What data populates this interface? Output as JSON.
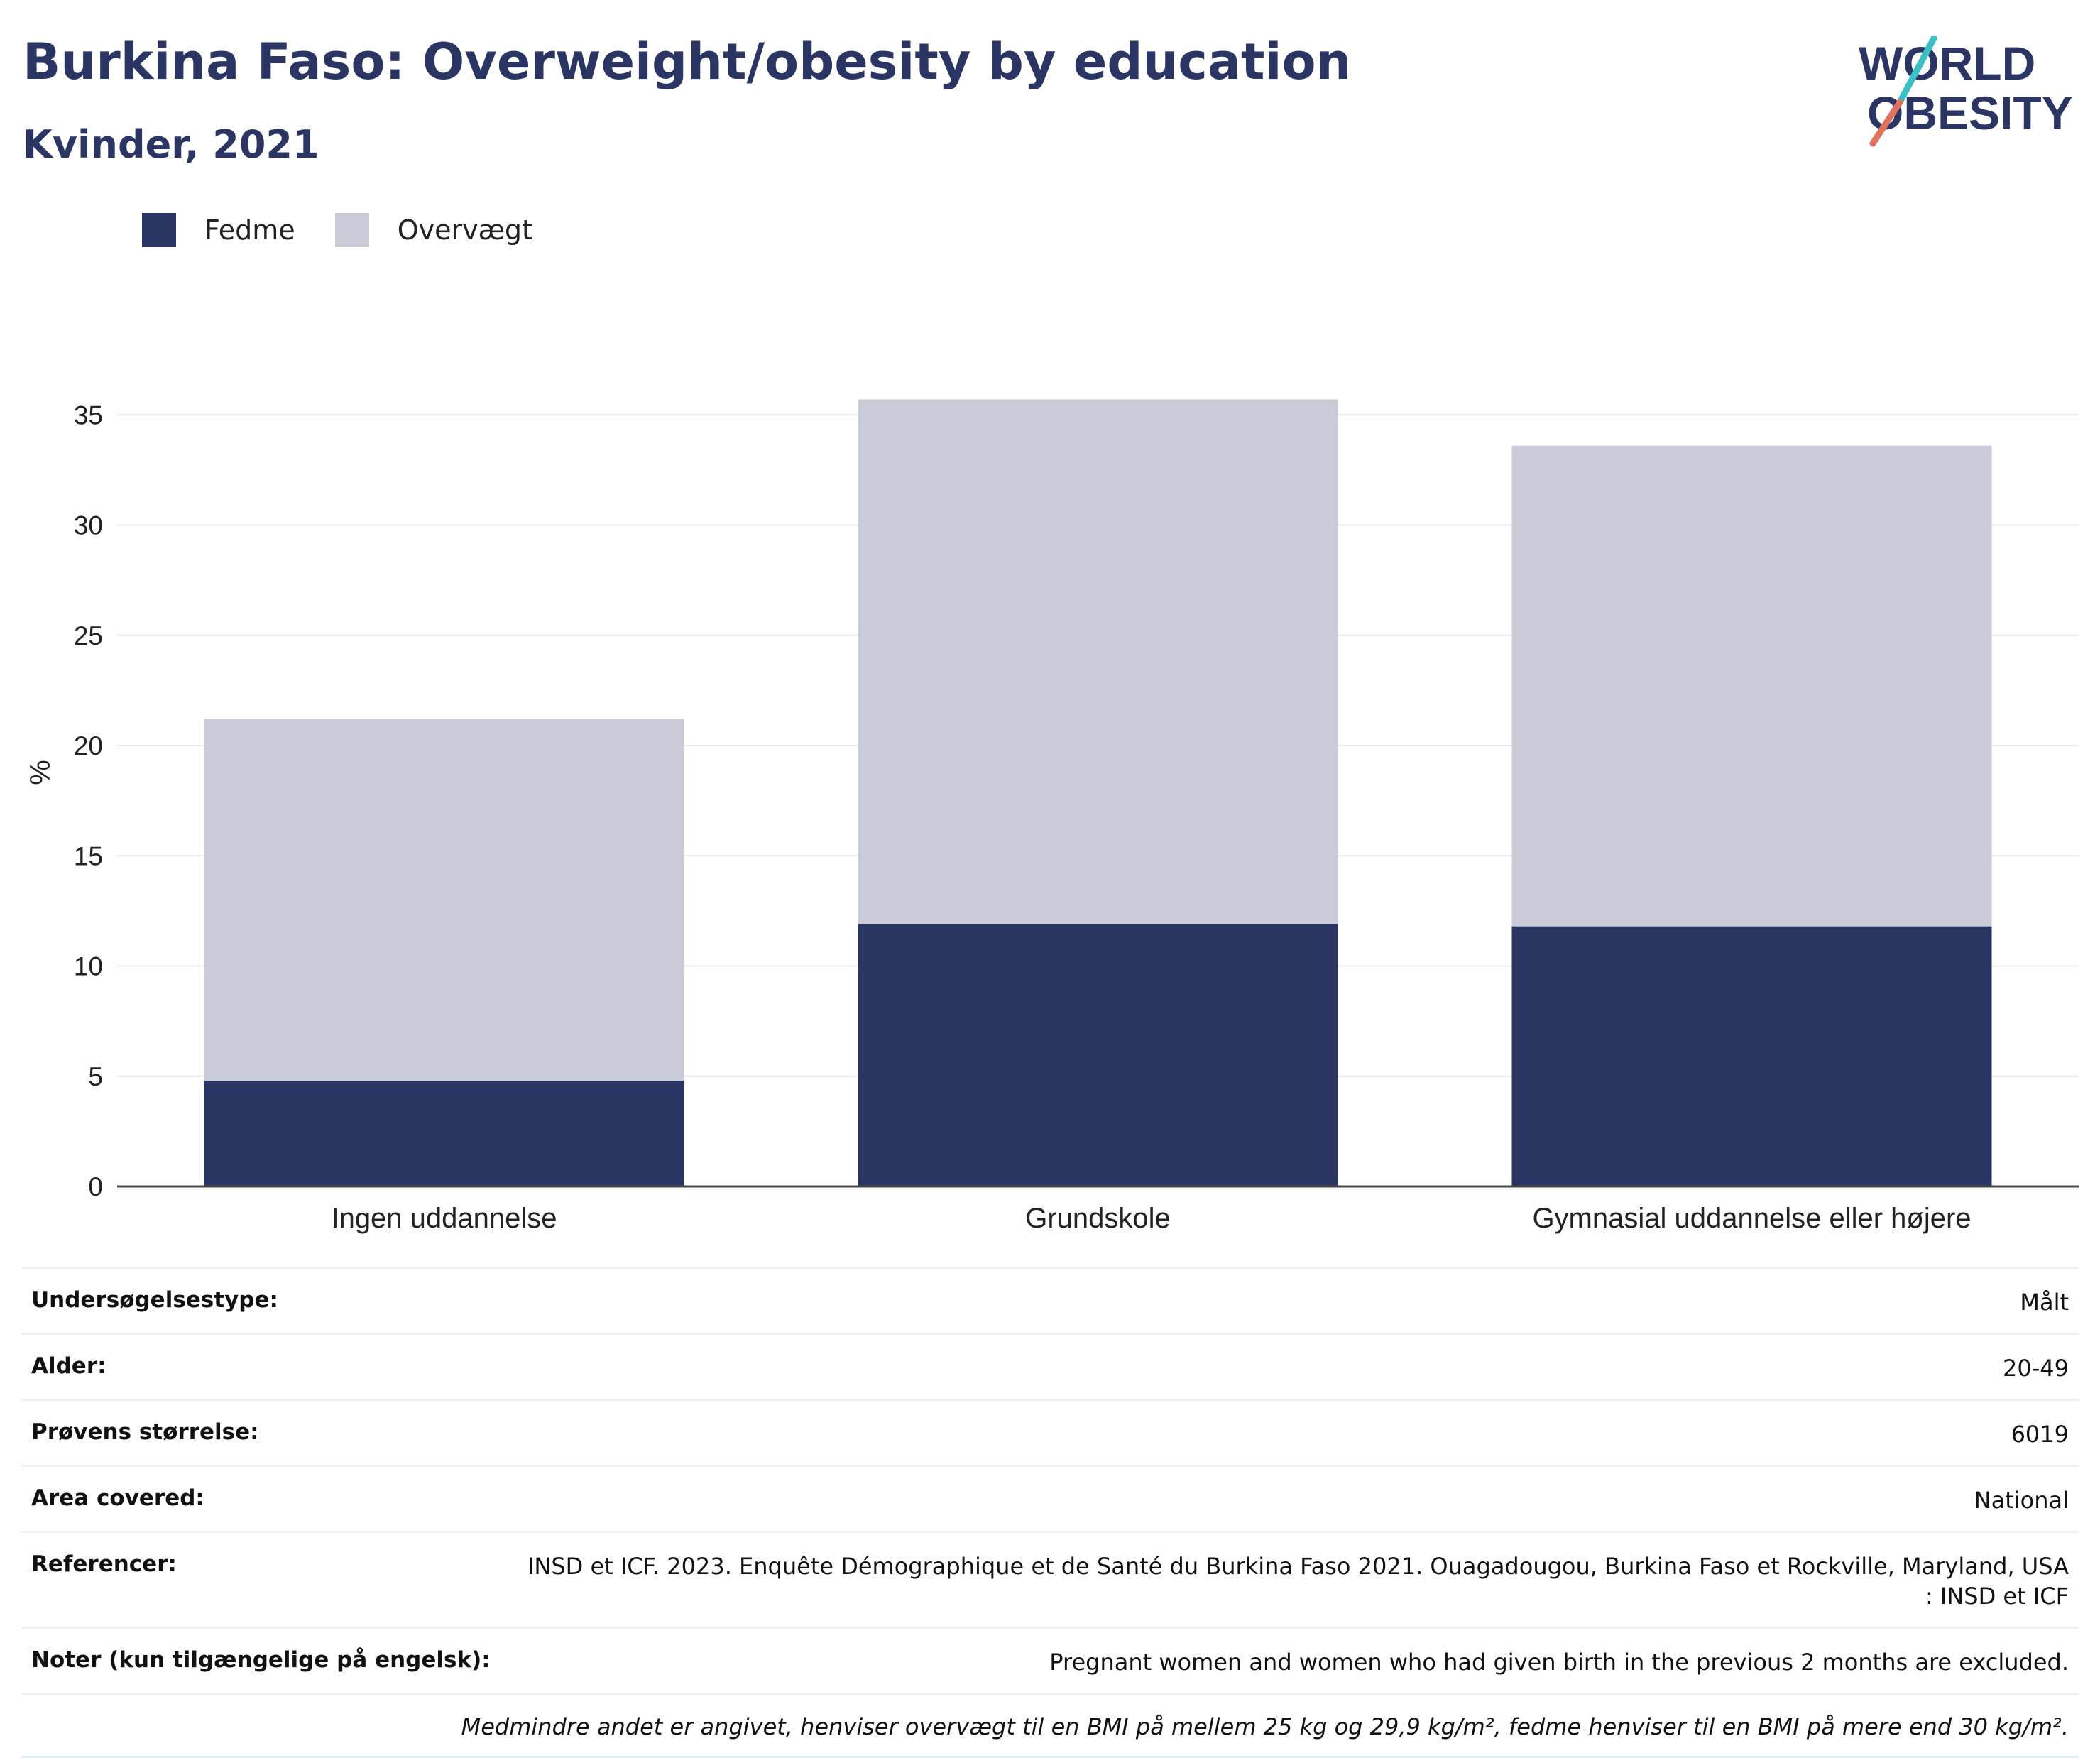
{
  "header": {
    "title": "Burkina Faso: Overweight/obesity by education",
    "subtitle": "Kvinder, 2021"
  },
  "logo": {
    "line1": "WORLD",
    "line2": "OBESITY"
  },
  "legend": {
    "items": [
      {
        "label": "Fedme",
        "color": "#2a3564"
      },
      {
        "label": "Overvægt",
        "color": "#c9cbd7"
      }
    ]
  },
  "chart_data": {
    "type": "bar",
    "stacked": true,
    "categories": [
      "Ingen uddannelse",
      "Grundskole",
      "Gymnasial uddannelse eller højere"
    ],
    "series": [
      {
        "name": "Fedme",
        "values": [
          4.8,
          11.9,
          11.8
        ],
        "color": "#2a3564"
      },
      {
        "name": "Overvægt",
        "values": [
          16.4,
          23.8,
          21.8
        ],
        "color": "#c9cbd7"
      }
    ],
    "ylabel": "%",
    "xlabel": "",
    "ylim": [
      0,
      35.7
    ],
    "yticks": [
      0,
      5,
      10,
      15,
      20,
      25,
      30,
      35
    ],
    "grid": true,
    "legend_position": "top-left"
  },
  "info": {
    "rows": [
      {
        "label": "Undersøgelsestype:",
        "value": "Målt"
      },
      {
        "label": "Alder:",
        "value": "20-49"
      },
      {
        "label": "Prøvens størrelse:",
        "value": "6019"
      },
      {
        "label": "Area covered:",
        "value": "National"
      },
      {
        "label": "Referencer:",
        "value": "INSD et ICF. 2023. Enquête Démographique et de Santé du Burkina Faso 2021. Ouagadougou, Burkina Faso et Rockville, Maryland, USA : INSD et ICF"
      },
      {
        "label": "Noter (kun tilgængelige på engelsk):",
        "value": "Pregnant women and women who had given birth in the previous 2 months are excluded."
      }
    ],
    "footnote": "Medmindre andet er angivet, henviser overvægt til en BMI på mellem 25 kg og 29,9 kg/m², fedme henviser til en BMI på mere end 30 kg/m²."
  }
}
